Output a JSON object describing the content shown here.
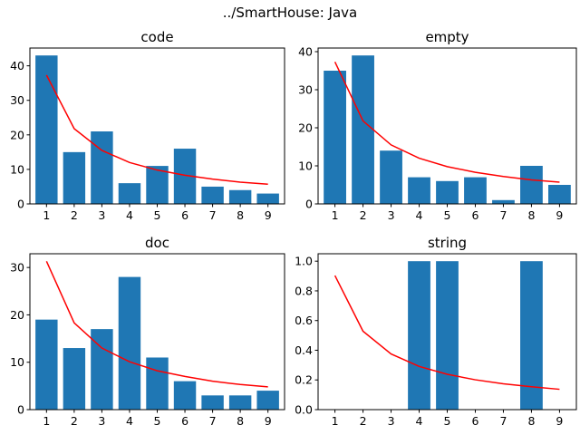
{
  "figure": {
    "suptitle": "../SmartHouse: Java"
  },
  "colors": {
    "bar": "#1f77b4",
    "curve": "#ff0000"
  },
  "chart_data": [
    {
      "type": "bar",
      "title": "code",
      "categories": [
        "1",
        "2",
        "3",
        "4",
        "5",
        "6",
        "7",
        "8",
        "9"
      ],
      "values": [
        43,
        15,
        21,
        6,
        11,
        16,
        5,
        4,
        3
      ],
      "line": [
        37.3,
        21.8,
        15.5,
        12.0,
        9.8,
        8.3,
        7.2,
        6.3,
        5.7
      ],
      "ylim": [
        0,
        45.15
      ],
      "yticks": [
        0,
        10,
        20,
        30,
        40
      ],
      "ytick_labels": [
        "0",
        "10",
        "20",
        "30",
        "40"
      ]
    },
    {
      "type": "bar",
      "title": "empty",
      "categories": [
        "1",
        "2",
        "3",
        "4",
        "5",
        "6",
        "7",
        "8",
        "9"
      ],
      "values": [
        35,
        39,
        14,
        7,
        6,
        7,
        1,
        10,
        5
      ],
      "line": [
        37.3,
        21.8,
        15.5,
        12.0,
        9.8,
        8.3,
        7.2,
        6.3,
        5.7
      ],
      "ylim": [
        0,
        40.95
      ],
      "yticks": [
        0,
        10,
        20,
        30,
        40
      ],
      "ytick_labels": [
        "0",
        "10",
        "20",
        "30",
        "40"
      ]
    },
    {
      "type": "bar",
      "title": "doc",
      "categories": [
        "1",
        "2",
        "3",
        "4",
        "5",
        "6",
        "7",
        "8",
        "9"
      ],
      "values": [
        19,
        13,
        17,
        28,
        11,
        6,
        3,
        3,
        4
      ],
      "line": [
        31.3,
        18.3,
        13.0,
        10.1,
        8.2,
        7.0,
        6.0,
        5.3,
        4.8
      ],
      "ylim": [
        0,
        32.9
      ],
      "yticks": [
        0,
        10,
        20,
        30
      ],
      "ytick_labels": [
        "0",
        "10",
        "20",
        "30"
      ]
    },
    {
      "type": "bar",
      "title": "string",
      "categories": [
        "1",
        "2",
        "3",
        "4",
        "5",
        "6",
        "7",
        "8",
        "9"
      ],
      "values": [
        0,
        0,
        0,
        1,
        1,
        0,
        0,
        1,
        0
      ],
      "line": [
        0.903,
        0.528,
        0.375,
        0.291,
        0.238,
        0.201,
        0.174,
        0.154,
        0.137
      ],
      "ylim": [
        0,
        1.05
      ],
      "yticks": [
        0,
        0.2,
        0.4,
        0.6,
        0.8,
        1.0
      ],
      "ytick_labels": [
        "0.0",
        "0.2",
        "0.4",
        "0.6",
        "0.8",
        "1.0"
      ]
    }
  ]
}
